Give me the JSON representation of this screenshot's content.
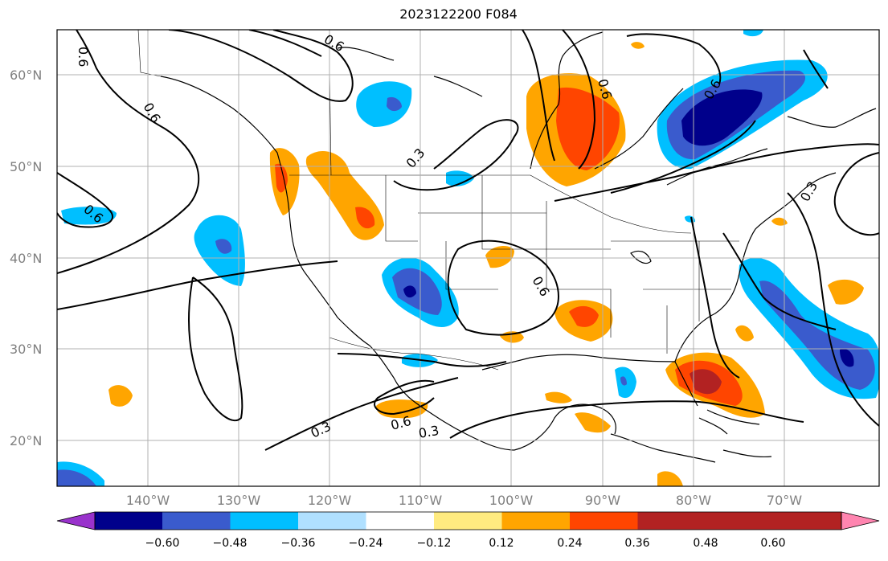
{
  "title": "2023122200 F084",
  "lat_labels": [
    "60°N",
    "50°N",
    "40°N",
    "30°N",
    "20°N"
  ],
  "lon_labels": [
    "140°W",
    "130°W",
    "120°W",
    "110°W",
    "100°W",
    "90°W",
    "80°W",
    "70°W"
  ],
  "contour_labels": [
    "0.6",
    "0.6",
    "0.6",
    "0.3",
    "0.6",
    "0.6",
    "0.3",
    "0.6",
    "0.3",
    "0.6",
    "0.3",
    "0.6"
  ],
  "colorbar": {
    "ticks": [
      "−0.60",
      "−0.48",
      "−0.36",
      "−0.24",
      "−0.12",
      "0.12",
      "0.24",
      "0.36",
      "0.48",
      "0.60"
    ],
    "colors": [
      "#9932cc",
      "#00008b",
      "#3a5bcd",
      "#00bfff",
      "#b0e0ff",
      "#ffffff",
      "#ffeb80",
      "#ffa500",
      "#ff4500",
      "#b22222",
      "#ff85b0"
    ]
  }
}
